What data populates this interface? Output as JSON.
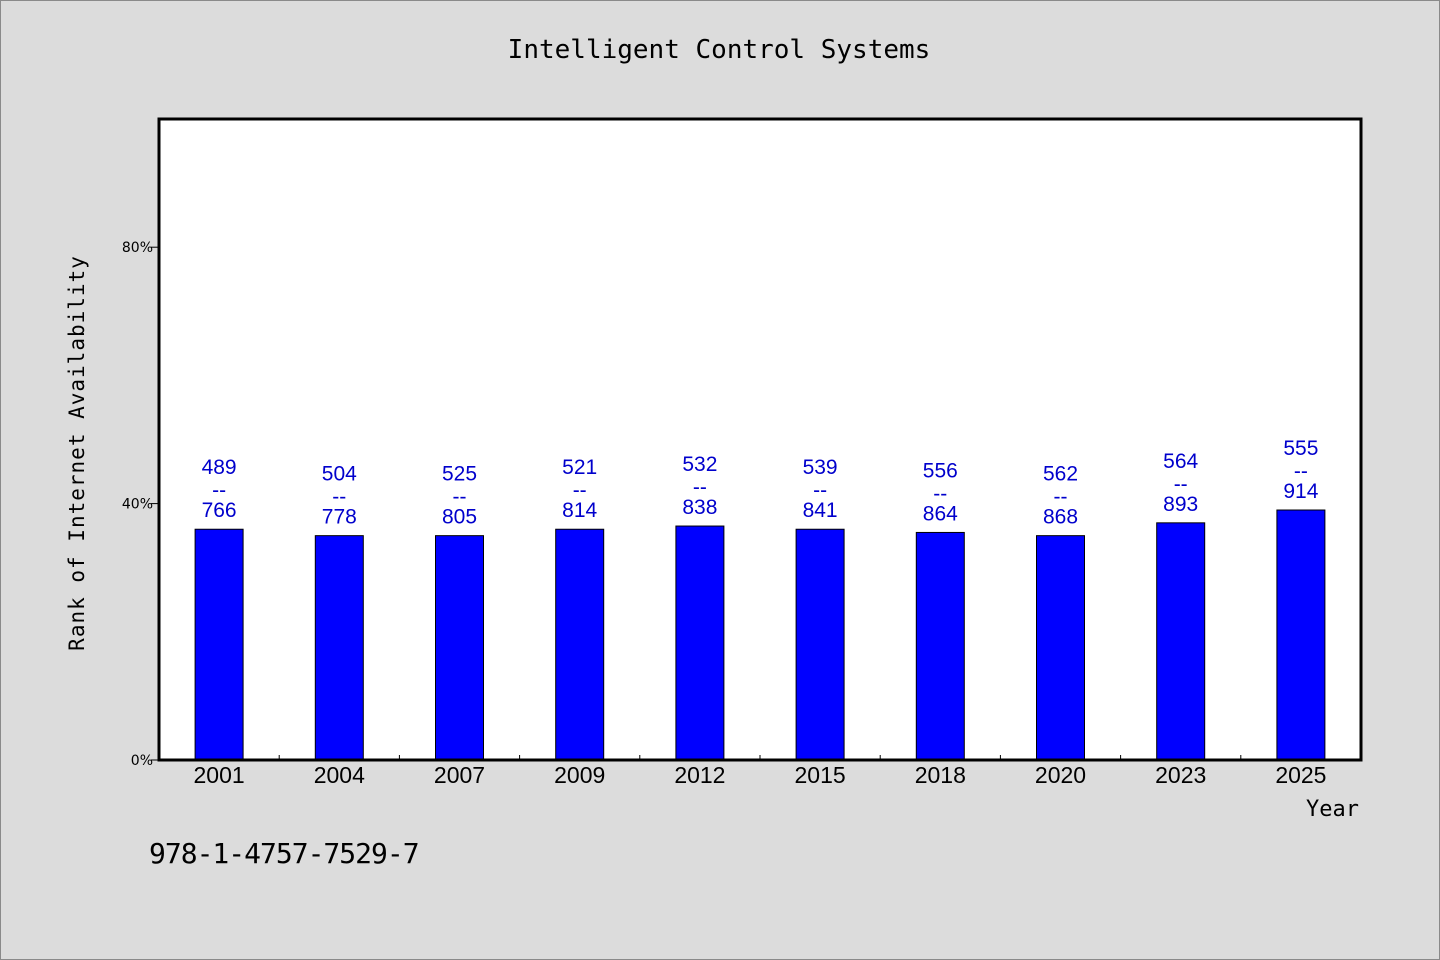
{
  "colors": {
    "page_background": "#dcdcdc",
    "plot_background": "#ffffff",
    "bar_fill": "#0000ff",
    "bar_stroke": "#000000",
    "data_label": "#0000cc",
    "axis": "#000000"
  },
  "isbn": "978-1-4757-7529-7",
  "chart_data": {
    "type": "bar",
    "title": "Intelligent Control Systems",
    "xlabel": "Year",
    "ylabel": "Rank of Internet Availability",
    "categories": [
      "2001",
      "2004",
      "2007",
      "2009",
      "2012",
      "2015",
      "2018",
      "2020",
      "2023",
      "2025"
    ],
    "values": [
      36,
      35,
      35,
      36,
      36.5,
      36,
      35.5,
      35,
      37,
      39
    ],
    "ylim": [
      0,
      100
    ],
    "yticks": [
      {
        "value": 0,
        "label": "0%"
      },
      {
        "value": 40,
        "label": "40%"
      },
      {
        "value": 80,
        "label": "80%"
      }
    ],
    "value_labels": [
      {
        "top": "489",
        "mid": "--",
        "bottom": "766"
      },
      {
        "top": "504",
        "mid": "--",
        "bottom": "778"
      },
      {
        "top": "525",
        "mid": "--",
        "bottom": "805"
      },
      {
        "top": "521",
        "mid": "--",
        "bottom": "814"
      },
      {
        "top": "532",
        "mid": "--",
        "bottom": "838"
      },
      {
        "top": "539",
        "mid": "--",
        "bottom": "841"
      },
      {
        "top": "556",
        "mid": "--",
        "bottom": "864"
      },
      {
        "top": "562",
        "mid": "--",
        "bottom": "868"
      },
      {
        "top": "564",
        "mid": "--",
        "bottom": "893"
      },
      {
        "top": "555",
        "mid": "--",
        "bottom": "914"
      }
    ],
    "grid": false,
    "legend": "none"
  }
}
